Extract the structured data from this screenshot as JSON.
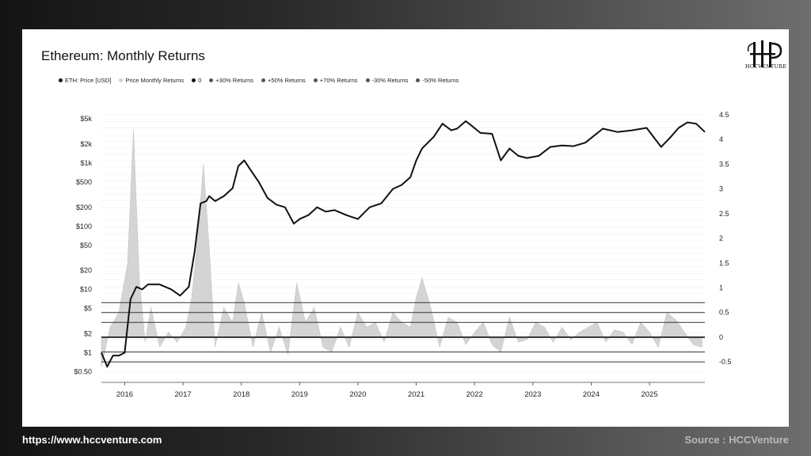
{
  "footer": {
    "url": "https://www.hccventure.com",
    "source": "Source : HCCVenture"
  },
  "logo": {
    "name": "hccventure-logo",
    "text": "HCCVENTURE"
  },
  "chart_data": {
    "type": "line",
    "title": "Ethereum: Monthly Returns",
    "legend": [
      {
        "label": "ETH: Price [USD]",
        "color": "#111111"
      },
      {
        "label": "Price Monthly Returns",
        "color": "#cfcfcf"
      },
      {
        "label": "0",
        "color": "#111111"
      },
      {
        "label": "+30% Returns",
        "color": "#555555"
      },
      {
        "label": "+50% Returns",
        "color": "#555555"
      },
      {
        "label": "+70% Returns",
        "color": "#555555"
      },
      {
        "label": "-30% Returns",
        "color": "#555555"
      },
      {
        "label": "-50% Returns",
        "color": "#555555"
      }
    ],
    "legend_position": "top-left",
    "x_ticks": [
      "2016",
      "2017",
      "2018",
      "2019",
      "2020",
      "2021",
      "2022",
      "2023",
      "2024",
      "2025"
    ],
    "x_range": [
      2015.6,
      2025.95
    ],
    "left_axis": {
      "scale": "log",
      "ticks": [
        {
          "v": 0.5,
          "label": "$0.50"
        },
        {
          "v": 1,
          "label": "$1"
        },
        {
          "v": 2,
          "label": "$2"
        },
        {
          "v": 5,
          "label": "$5"
        },
        {
          "v": 10,
          "label": "$10"
        },
        {
          "v": 20,
          "label": "$20"
        },
        {
          "v": 50,
          "label": "$50"
        },
        {
          "v": 100,
          "label": "$100"
        },
        {
          "v": 200,
          "label": "$200"
        },
        {
          "v": 500,
          "label": "$500"
        },
        {
          "v": 1000,
          "label": "$1k"
        },
        {
          "v": 2000,
          "label": "$2k"
        },
        {
          "v": 5000,
          "label": "$5k"
        }
      ]
    },
    "right_axis": {
      "ticks": [
        "-0.5",
        "0",
        "0.5",
        "1",
        "1.5",
        "2",
        "2.5",
        "3",
        "3.5",
        "4",
        "4.5"
      ],
      "range": [
        -0.85,
        4.5
      ]
    },
    "reference_lines": [
      {
        "name": "0",
        "value": 0
      },
      {
        "name": "+30% Returns",
        "value": 0.3
      },
      {
        "name": "+50% Returns",
        "value": 0.5
      },
      {
        "name": "+70% Returns",
        "value": 0.7
      },
      {
        "name": "-30% Returns",
        "value": -0.3
      },
      {
        "name": "-50% Returns",
        "value": -0.5
      }
    ],
    "series": [
      {
        "name": "ETH: Price [USD]",
        "axis": "left",
        "x": [
          2015.6,
          2015.7,
          2015.8,
          2015.9,
          2016.0,
          2016.1,
          2016.2,
          2016.3,
          2016.4,
          2016.6,
          2016.8,
          2016.95,
          2017.1,
          2017.2,
          2017.3,
          2017.4,
          2017.45,
          2017.55,
          2017.7,
          2017.85,
          2017.95,
          2018.05,
          2018.15,
          2018.3,
          2018.45,
          2018.6,
          2018.75,
          2018.9,
          2019.0,
          2019.15,
          2019.3,
          2019.45,
          2019.6,
          2019.8,
          2020.0,
          2020.2,
          2020.4,
          2020.6,
          2020.75,
          2020.9,
          2021.0,
          2021.1,
          2021.3,
          2021.45,
          2021.6,
          2021.7,
          2021.85,
          2021.95,
          2022.1,
          2022.3,
          2022.45,
          2022.6,
          2022.75,
          2022.9,
          2023.1,
          2023.3,
          2023.5,
          2023.7,
          2023.9,
          2024.2,
          2024.45,
          2024.7,
          2024.95,
          2025.2,
          2025.35,
          2025.5,
          2025.65,
          2025.8,
          2025.95
        ],
        "y": [
          1.0,
          0.6,
          0.9,
          0.9,
          1.0,
          7,
          11,
          10,
          12,
          12,
          10,
          8,
          11,
          40,
          230,
          250,
          300,
          250,
          300,
          400,
          900,
          1100,
          800,
          500,
          280,
          220,
          200,
          110,
          130,
          150,
          200,
          170,
          180,
          150,
          130,
          200,
          230,
          390,
          450,
          600,
          1100,
          1700,
          2600,
          4200,
          3300,
          3500,
          4600,
          3900,
          3000,
          2900,
          1100,
          1700,
          1300,
          1200,
          1300,
          1800,
          1900,
          1850,
          2100,
          3500,
          3100,
          3300,
          3600,
          1800,
          2500,
          3600,
          4400,
          4200,
          3100
        ]
      },
      {
        "name": "Price Monthly Returns",
        "axis": "right",
        "x": [
          2015.6,
          2015.75,
          2015.9,
          2016.05,
          2016.15,
          2016.25,
          2016.35,
          2016.45,
          2016.6,
          2016.75,
          2016.9,
          2017.05,
          2017.15,
          2017.25,
          2017.35,
          2017.45,
          2017.55,
          2017.7,
          2017.85,
          2017.95,
          2018.05,
          2018.2,
          2018.35,
          2018.5,
          2018.65,
          2018.8,
          2018.95,
          2019.1,
          2019.25,
          2019.4,
          2019.55,
          2019.7,
          2019.85,
          2020.0,
          2020.15,
          2020.3,
          2020.45,
          2020.6,
          2020.75,
          2020.9,
          2021.0,
          2021.1,
          2021.25,
          2021.4,
          2021.55,
          2021.7,
          2021.85,
          2022.0,
          2022.15,
          2022.3,
          2022.45,
          2022.6,
          2022.75,
          2022.9,
          2023.05,
          2023.2,
          2023.35,
          2023.5,
          2023.65,
          2023.8,
          2023.95,
          2024.1,
          2024.25,
          2024.4,
          2024.55,
          2024.7,
          2024.85,
          2025.0,
          2025.15,
          2025.3,
          2025.45,
          2025.6,
          2025.75,
          2025.9
        ],
        "y": [
          -0.6,
          0.2,
          0.5,
          1.5,
          4.2,
          1.2,
          -0.1,
          0.6,
          -0.2,
          0.1,
          -0.1,
          0.2,
          0.8,
          2.0,
          3.5,
          1.8,
          -0.2,
          0.6,
          0.3,
          1.1,
          0.7,
          -0.2,
          0.5,
          -0.3,
          0.2,
          -0.35,
          1.1,
          0.3,
          0.6,
          -0.2,
          -0.3,
          0.2,
          -0.2,
          0.5,
          0.2,
          0.3,
          -0.1,
          0.5,
          0.3,
          0.2,
          0.8,
          1.2,
          0.6,
          -0.2,
          0.4,
          0.3,
          -0.15,
          0.1,
          0.3,
          -0.15,
          -0.3,
          0.4,
          -0.1,
          -0.05,
          0.3,
          0.2,
          -0.1,
          0.2,
          -0.05,
          0.1,
          0.2,
          0.3,
          -0.1,
          0.15,
          0.1,
          -0.15,
          0.3,
          0.1,
          -0.2,
          0.5,
          0.35,
          0.1,
          -0.15,
          -0.2
        ]
      }
    ]
  }
}
